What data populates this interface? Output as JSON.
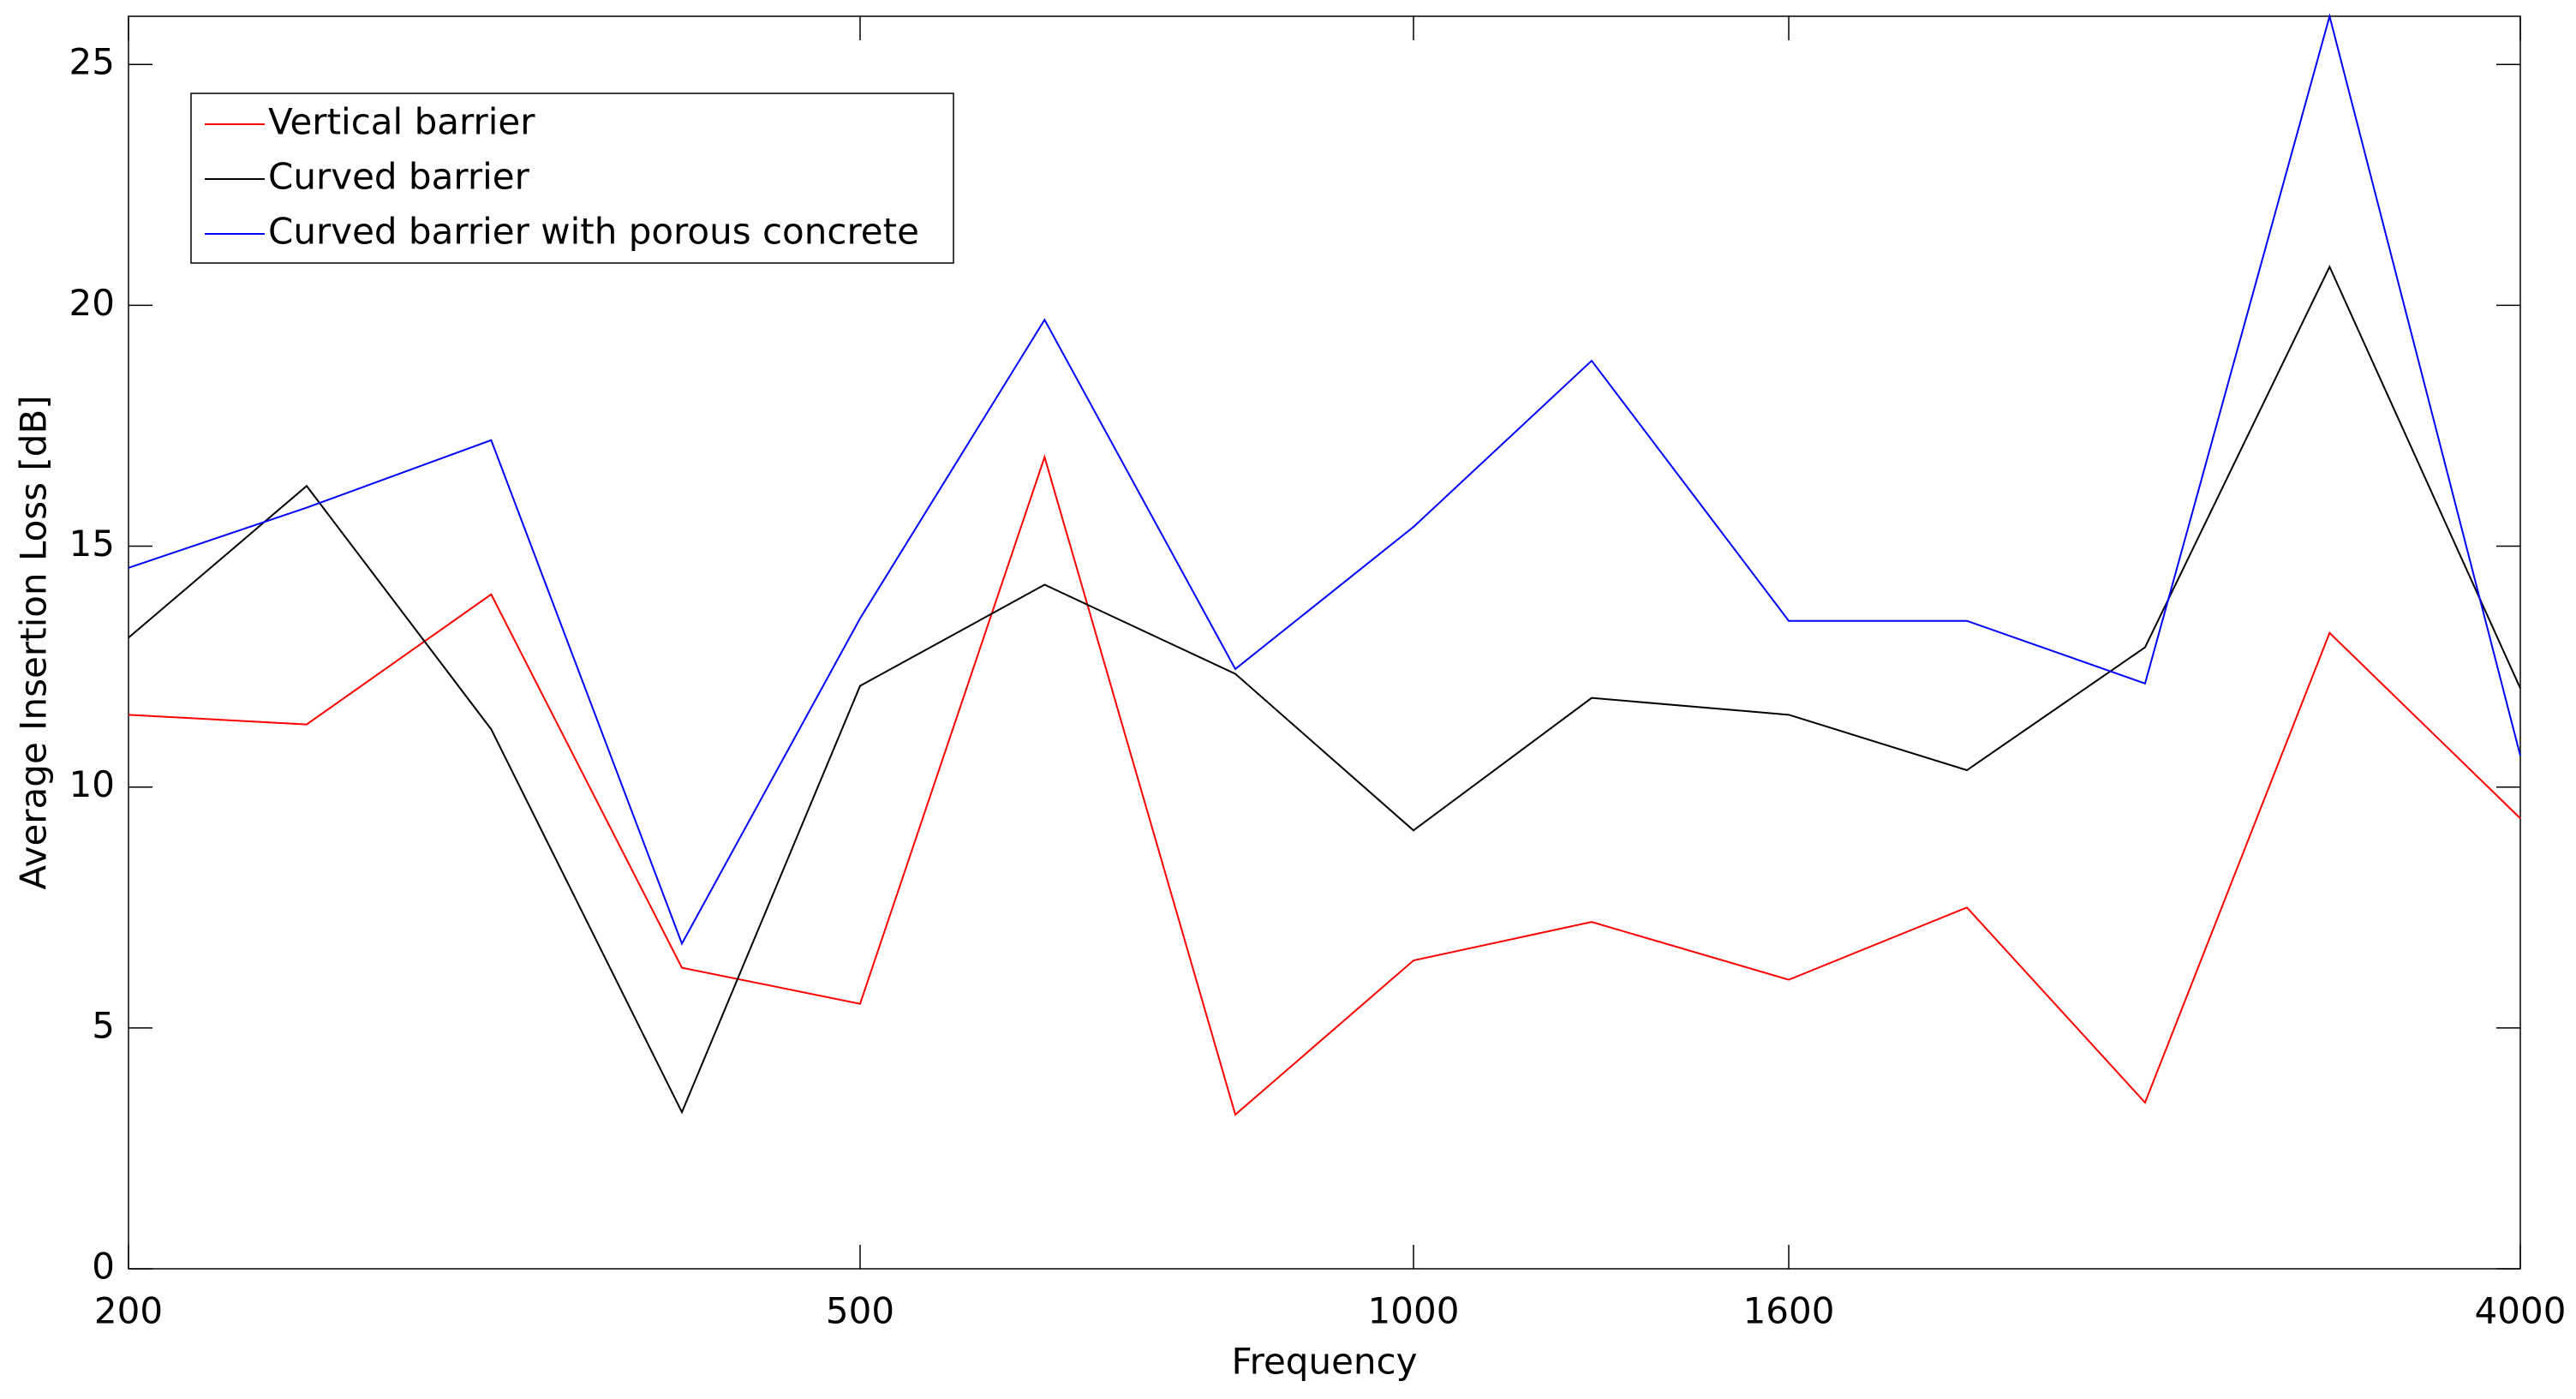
{
  "chart_data": {
    "type": "line",
    "x_label": "Frequency",
    "y_label": "Average Insertion Loss [dB]",
    "x": [
      200,
      250,
      315,
      400,
      500,
      630,
      800,
      1000,
      1250,
      1600,
      2000,
      2500,
      3150,
      4000
    ],
    "xscale": "log",
    "xlim": [
      200,
      4000
    ],
    "xticks": [
      200,
      500,
      1000,
      1600,
      4000
    ],
    "ylim": [
      0,
      26
    ],
    "yticks": [
      0,
      5,
      10,
      15,
      20,
      25
    ],
    "legend": "upper left",
    "series": [
      {
        "name": "Vertical barrier",
        "color": "#ff0000",
        "values": [
          11.5,
          11.3,
          14.0,
          6.25,
          5.5,
          16.85,
          3.2,
          6.4,
          7.2,
          6.0,
          7.5,
          3.45,
          13.2,
          9.35
        ]
      },
      {
        "name": "Curved barrier",
        "color": "#000000",
        "values": [
          13.1,
          16.25,
          11.2,
          3.25,
          12.1,
          14.2,
          12.35,
          9.1,
          11.85,
          11.5,
          10.35,
          12.9,
          20.8,
          12.05
        ]
      },
      {
        "name": "Curved barrier with porous concrete",
        "color": "#0000ff",
        "values": [
          14.55,
          15.8,
          17.2,
          6.75,
          13.5,
          19.7,
          12.45,
          15.4,
          18.85,
          13.45,
          13.45,
          12.15,
          26.0,
          10.65
        ]
      }
    ]
  }
}
